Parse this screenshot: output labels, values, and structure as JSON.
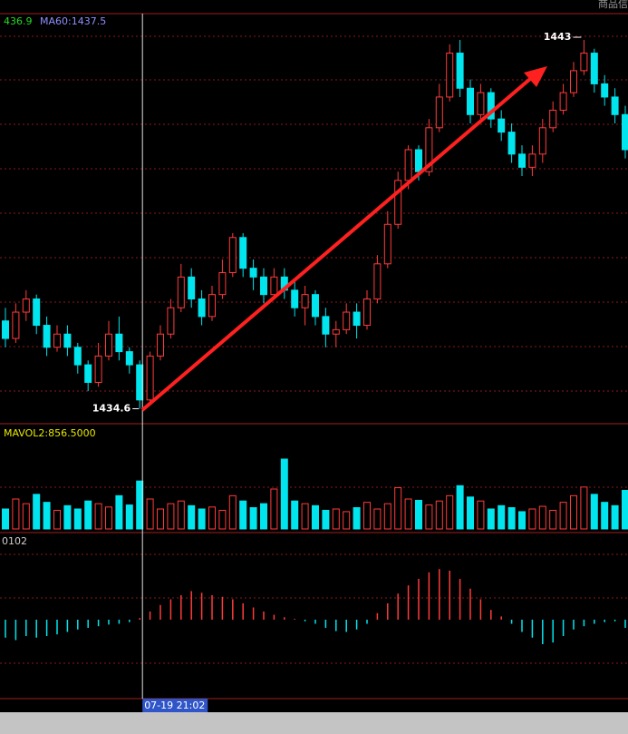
{
  "chart_data": {
    "type": "candlestick",
    "legend": [
      {
        "text": "436.9",
        "color": "#22dd22"
      },
      {
        "text": "MA60:1437.5",
        "color": "#8f8fff"
      }
    ],
    "corner_label": "商品信",
    "candles": [
      [
        1436.6,
        1436.2,
        1436.9,
        1436.0
      ],
      [
        1436.2,
        1436.8,
        1437.0,
        1436.1
      ],
      [
        1436.8,
        1437.1,
        1437.3,
        1436.6
      ],
      [
        1437.1,
        1436.5,
        1437.2,
        1436.3
      ],
      [
        1436.5,
        1436.0,
        1436.7,
        1435.8
      ],
      [
        1436.0,
        1436.3,
        1436.5,
        1435.9
      ],
      [
        1436.3,
        1436.0,
        1436.5,
        1435.8
      ],
      [
        1436.0,
        1435.6,
        1436.1,
        1435.4
      ],
      [
        1435.6,
        1435.2,
        1435.7,
        1435.0
      ],
      [
        1435.2,
        1435.8,
        1436.1,
        1435.1
      ],
      [
        1435.8,
        1436.3,
        1436.6,
        1435.7
      ],
      [
        1436.3,
        1435.9,
        1436.7,
        1435.7
      ],
      [
        1435.9,
        1435.6,
        1436.0,
        1435.4
      ],
      [
        1435.6,
        1434.8,
        1435.7,
        1434.6
      ],
      [
        1434.8,
        1435.8,
        1435.9,
        1434.7
      ],
      [
        1435.8,
        1436.3,
        1436.5,
        1435.7
      ],
      [
        1436.3,
        1436.9,
        1437.1,
        1436.2
      ],
      [
        1436.9,
        1437.6,
        1437.9,
        1436.8
      ],
      [
        1437.6,
        1437.1,
        1437.8,
        1436.9
      ],
      [
        1437.1,
        1436.7,
        1437.3,
        1436.5
      ],
      [
        1436.7,
        1437.2,
        1437.4,
        1436.6
      ],
      [
        1437.2,
        1437.7,
        1438.0,
        1437.1
      ],
      [
        1437.7,
        1438.5,
        1438.6,
        1437.6
      ],
      [
        1438.5,
        1437.8,
        1438.6,
        1437.6
      ],
      [
        1437.8,
        1437.6,
        1438.0,
        1437.3
      ],
      [
        1437.6,
        1437.2,
        1437.8,
        1437.0
      ],
      [
        1437.2,
        1437.6,
        1437.8,
        1437.1
      ],
      [
        1437.6,
        1437.3,
        1437.8,
        1437.1
      ],
      [
        1437.3,
        1436.9,
        1437.5,
        1436.7
      ],
      [
        1436.9,
        1437.2,
        1437.4,
        1436.5
      ],
      [
        1437.2,
        1436.7,
        1437.3,
        1436.5
      ],
      [
        1436.7,
        1436.3,
        1436.9,
        1436.0
      ],
      [
        1436.3,
        1436.4,
        1436.6,
        1436.0
      ],
      [
        1436.4,
        1436.8,
        1437.0,
        1436.3
      ],
      [
        1436.8,
        1436.5,
        1437.0,
        1436.2
      ],
      [
        1436.5,
        1437.1,
        1437.3,
        1436.4
      ],
      [
        1437.1,
        1437.9,
        1438.1,
        1437.0
      ],
      [
        1437.9,
        1438.8,
        1439.1,
        1437.8
      ],
      [
        1438.8,
        1439.8,
        1440.0,
        1438.7
      ],
      [
        1439.8,
        1440.5,
        1440.6,
        1439.6
      ],
      [
        1440.5,
        1440.0,
        1440.6,
        1439.8
      ],
      [
        1440.0,
        1441.0,
        1441.2,
        1439.9
      ],
      [
        1441.0,
        1441.7,
        1442.0,
        1440.9
      ],
      [
        1441.7,
        1442.7,
        1442.9,
        1441.6
      ],
      [
        1442.7,
        1441.9,
        1443.0,
        1441.7
      ],
      [
        1441.9,
        1441.3,
        1442.1,
        1441.1
      ],
      [
        1441.3,
        1441.8,
        1442.0,
        1441.2
      ],
      [
        1441.8,
        1441.2,
        1441.9,
        1441.0
      ],
      [
        1441.2,
        1440.9,
        1441.4,
        1440.7
      ],
      [
        1440.9,
        1440.4,
        1441.1,
        1440.2
      ],
      [
        1440.4,
        1440.1,
        1440.6,
        1439.9
      ],
      [
        1440.1,
        1440.4,
        1440.6,
        1439.9
      ],
      [
        1440.4,
        1441.0,
        1441.2,
        1440.2
      ],
      [
        1441.0,
        1441.4,
        1441.6,
        1440.9
      ],
      [
        1441.4,
        1441.8,
        1442.0,
        1441.3
      ],
      [
        1441.8,
        1442.3,
        1442.5,
        1441.7
      ],
      [
        1442.3,
        1442.7,
        1443.0,
        1442.2
      ],
      [
        1442.7,
        1442.0,
        1442.8,
        1441.8
      ],
      [
        1442.0,
        1441.7,
        1442.2,
        1441.5
      ],
      [
        1441.7,
        1441.3,
        1441.9,
        1441.1
      ],
      [
        1441.3,
        1440.5,
        1441.5,
        1440.3
      ]
    ],
    "ylim": [
      1434.3,
      1443.6
    ],
    "low": 1434.6,
    "low_index": 13,
    "high": 1443.0,
    "high_index": 56,
    "up_color": "#ff3b3b",
    "down_color": "#00e5ee",
    "volume_label": "MAVOL2:856.5000",
    "volume_label_color": "#e8e800",
    "volume": [
      300,
      450,
      380,
      520,
      400,
      280,
      350,
      300,
      420,
      380,
      330,
      500,
      360,
      720,
      450,
      300,
      380,
      420,
      350,
      300,
      330,
      280,
      500,
      420,
      320,
      380,
      600,
      1050,
      420,
      380,
      350,
      280,
      300,
      260,
      320,
      400,
      300,
      380,
      620,
      450,
      430,
      360,
      420,
      500,
      650,
      480,
      420,
      300,
      350,
      320,
      260,
      300,
      340,
      280,
      400,
      500,
      630,
      520,
      400,
      350,
      580
    ],
    "vlim": [
      0,
      1500
    ],
    "macd_label": "0102",
    "macd": [
      -0.22,
      -0.25,
      -0.2,
      -0.22,
      -0.2,
      -0.18,
      -0.15,
      -0.12,
      -0.1,
      -0.08,
      -0.06,
      -0.05,
      -0.03,
      0.02,
      0.1,
      0.18,
      0.25,
      0.3,
      0.35,
      0.33,
      0.3,
      0.28,
      0.25,
      0.2,
      0.15,
      0.1,
      0.06,
      0.03,
      0.01,
      -0.02,
      -0.05,
      -0.1,
      -0.14,
      -0.15,
      -0.12,
      -0.05,
      0.08,
      0.2,
      0.32,
      0.42,
      0.5,
      0.58,
      0.62,
      0.6,
      0.5,
      0.38,
      0.25,
      0.12,
      0.04,
      -0.05,
      -0.15,
      -0.22,
      -0.3,
      -0.28,
      -0.2,
      -0.12,
      -0.08,
      -0.05,
      -0.03,
      -0.02,
      -0.1
    ],
    "macdlim": [
      -1,
      1
    ],
    "cursor_index": 13,
    "cursor_time": "07-19 21:02"
  }
}
